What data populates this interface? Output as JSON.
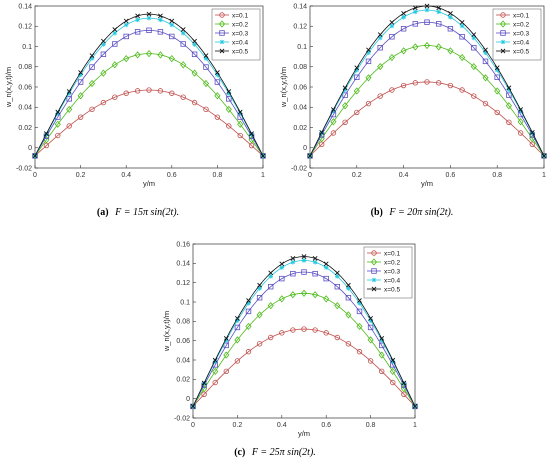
{
  "chart_data": [
    {
      "type": "line",
      "caption_label": "(a)",
      "caption_text": "F = 15π sin(2t).",
      "xlabel": "y/m",
      "ylabel": "w_n(x,y,t)/m",
      "xlim": [
        0,
        1
      ],
      "ylim": [
        -0.02,
        0.14
      ],
      "xticks": [
        "0",
        "0.2",
        "0.4",
        "0.6",
        "0.8",
        "1"
      ],
      "yticks": [
        "-0.02",
        "0",
        "0.02",
        "0.04",
        "0.06",
        "0.08",
        "0.1",
        "0.12",
        "0.14"
      ],
      "grid": false,
      "legend_position": "top-right",
      "series": [
        {
          "name": "x=0.1",
          "color": "#c0504d",
          "marker": "circle",
          "peak": 0.057
        },
        {
          "name": "x=0.2",
          "color": "#4cbb17",
          "marker": "diamond",
          "peak": 0.093
        },
        {
          "name": "x=0.3",
          "color": "#5b4fc4",
          "marker": "square",
          "peak": 0.116
        },
        {
          "name": "x=0.4",
          "color": "#24c8e0",
          "marker": "star",
          "peak": 0.128
        },
        {
          "name": "x=0.5",
          "color": "#111111",
          "marker": "cross",
          "peak": 0.132
        }
      ]
    },
    {
      "type": "line",
      "caption_label": "(b)",
      "caption_text": "F = 20π sin(2t).",
      "xlabel": "y/m",
      "ylabel": "w_n(x,y,t)/m",
      "xlim": [
        0,
        1
      ],
      "ylim": [
        -0.02,
        0.14
      ],
      "xticks": [
        "0",
        "0.2",
        "0.4",
        "0.6",
        "0.8",
        "1"
      ],
      "yticks": [
        "-0.02",
        "0",
        "0.02",
        "0.04",
        "0.06",
        "0.08",
        "0.1",
        "0.12",
        "0.14"
      ],
      "grid": false,
      "legend_position": "top-right",
      "series": [
        {
          "name": "x=0.1",
          "color": "#c0504d",
          "marker": "circle",
          "peak": 0.065
        },
        {
          "name": "x=0.2",
          "color": "#4cbb17",
          "marker": "diamond",
          "peak": 0.101
        },
        {
          "name": "x=0.3",
          "color": "#5b4fc4",
          "marker": "square",
          "peak": 0.124
        },
        {
          "name": "x=0.4",
          "color": "#24c8e0",
          "marker": "star",
          "peak": 0.136
        },
        {
          "name": "x=0.5",
          "color": "#111111",
          "marker": "cross",
          "peak": 0.14
        }
      ]
    },
    {
      "type": "line",
      "caption_label": "(c)",
      "caption_text": "F = 25π sin(2t).",
      "xlabel": "y/m",
      "ylabel": "w_n(x,y,t)/m",
      "xlim": [
        0,
        1
      ],
      "ylim": [
        -0.02,
        0.16
      ],
      "xticks": [
        "0",
        "0.2",
        "0.4",
        "0.6",
        "0.8",
        "1"
      ],
      "yticks": [
        "-0.02",
        "0",
        "0.02",
        "0.04",
        "0.06",
        "0.08",
        "0.1",
        "0.12",
        "0.14",
        "0.16"
      ],
      "grid": false,
      "legend_position": "top-right",
      "series": [
        {
          "name": "x=0.1",
          "color": "#c0504d",
          "marker": "circle",
          "peak": 0.072
        },
        {
          "name": "x=0.2",
          "color": "#4cbb17",
          "marker": "diamond",
          "peak": 0.109
        },
        {
          "name": "x=0.3",
          "color": "#5b4fc4",
          "marker": "square",
          "peak": 0.131
        },
        {
          "name": "x=0.4",
          "color": "#24c8e0",
          "marker": "star",
          "peak": 0.143
        },
        {
          "name": "x=0.5",
          "color": "#111111",
          "marker": "cross",
          "peak": 0.147
        }
      ]
    }
  ]
}
